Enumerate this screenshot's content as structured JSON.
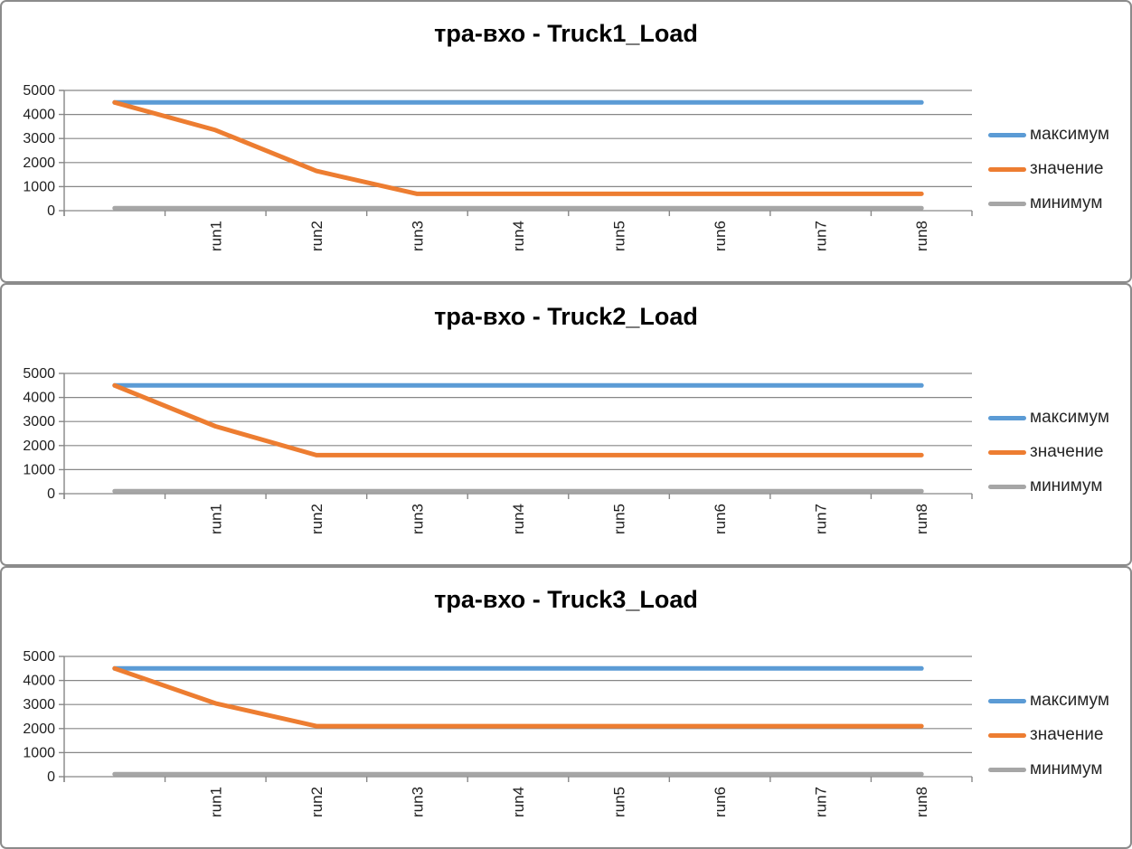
{
  "colors": {
    "maximum": "#5B9BD5",
    "value": "#ED7D31",
    "minimum": "#A6A6A6",
    "grid": "#878787",
    "axis": "#878787",
    "panel_border": "#8B8B8B",
    "title_text": "#000000",
    "tick_text": "#1F1F1F",
    "legend_text": "#262626"
  },
  "chart_data": [
    {
      "type": "line",
      "title": "тра-вхо - Truck1_Load",
      "categories": [
        "",
        "run1",
        "run2",
        "run3",
        "run4",
        "run5",
        "run6",
        "run7",
        "run8"
      ],
      "ylim": [
        0,
        5000
      ],
      "ytick_step": 1000,
      "grid": true,
      "legend_position": "right",
      "series": [
        {
          "name": "максимум",
          "color": "#5B9BD5",
          "values": [
            4500,
            4500,
            4500,
            4500,
            4500,
            4500,
            4500,
            4500,
            4500
          ]
        },
        {
          "name": "значение",
          "color": "#ED7D31",
          "values": [
            4500,
            3350,
            1650,
            700,
            700,
            700,
            700,
            700,
            700
          ]
        },
        {
          "name": "минимум",
          "color": "#A6A6A6",
          "values": [
            0,
            0,
            0,
            0,
            0,
            0,
            0,
            0,
            0
          ]
        }
      ]
    },
    {
      "type": "line",
      "title": "тра-вхо - Truck2_Load",
      "categories": [
        "",
        "run1",
        "run2",
        "run3",
        "run4",
        "run5",
        "run6",
        "run7",
        "run8"
      ],
      "ylim": [
        0,
        5000
      ],
      "ytick_step": 1000,
      "grid": true,
      "legend_position": "right",
      "series": [
        {
          "name": "максимум",
          "color": "#5B9BD5",
          "values": [
            4500,
            4500,
            4500,
            4500,
            4500,
            4500,
            4500,
            4500,
            4500
          ]
        },
        {
          "name": "значение",
          "color": "#ED7D31",
          "values": [
            4500,
            2800,
            1600,
            1600,
            1600,
            1600,
            1600,
            1600,
            1600
          ]
        },
        {
          "name": "минимум",
          "color": "#A6A6A6",
          "values": [
            0,
            0,
            0,
            0,
            0,
            0,
            0,
            0,
            0
          ]
        }
      ]
    },
    {
      "type": "line",
      "title": "тра-вхо - Truck3_Load",
      "categories": [
        "",
        "run1",
        "run2",
        "run3",
        "run4",
        "run5",
        "run6",
        "run7",
        "run8"
      ],
      "ylim": [
        0,
        5000
      ],
      "ytick_step": 1000,
      "grid": true,
      "legend_position": "right",
      "series": [
        {
          "name": "максимум",
          "color": "#5B9BD5",
          "values": [
            4500,
            4500,
            4500,
            4500,
            4500,
            4500,
            4500,
            4500,
            4500
          ]
        },
        {
          "name": "значение",
          "color": "#ED7D31",
          "values": [
            4500,
            3050,
            2100,
            2100,
            2100,
            2100,
            2100,
            2100,
            2100
          ]
        },
        {
          "name": "минимум",
          "color": "#A6A6A6",
          "values": [
            0,
            0,
            0,
            0,
            0,
            0,
            0,
            0,
            0
          ]
        }
      ]
    }
  ]
}
